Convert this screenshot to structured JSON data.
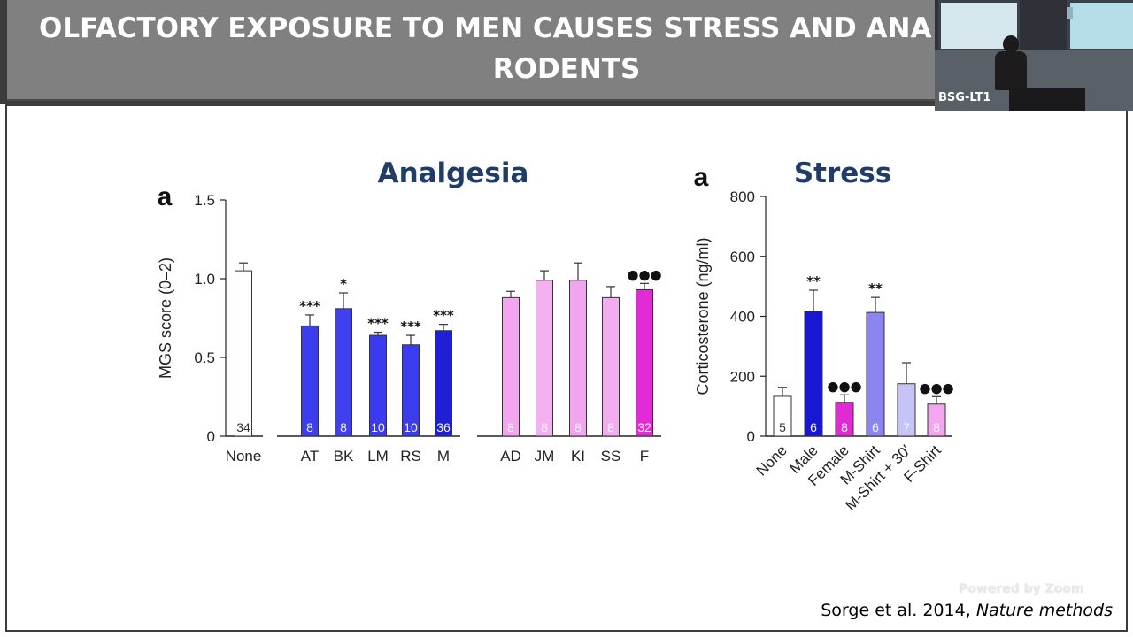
{
  "slide": {
    "title_line1": "OLFACTORY EXPOSURE TO MEN CAUSES STRESS AND ANA",
    "title_line2": "RODENTS",
    "citation_authors": "Sorge et al. 2014, ",
    "citation_journal": "Nature methods",
    "watermark": "Powered by Zoom"
  },
  "video": {
    "label": "BSG-LT1"
  },
  "chart_data": [
    {
      "type": "bar",
      "panel_letter": "a",
      "title": "Analgesia",
      "ylabel": "MGS score (0–2)",
      "ylim": [
        0,
        1.5
      ],
      "yticks": [
        "0",
        "0.5",
        "1.0",
        "1.5"
      ],
      "categories": [
        "None",
        "AT",
        "BK",
        "LM",
        "RS",
        "M",
        "AD",
        "JM",
        "KI",
        "SS",
        "F"
      ],
      "values": [
        1.05,
        0.7,
        0.81,
        0.64,
        0.58,
        0.67,
        0.88,
        0.99,
        0.99,
        0.88,
        0.93
      ],
      "errors": [
        0.05,
        0.07,
        0.1,
        0.02,
        0.06,
        0.04,
        0.04,
        0.06,
        0.11,
        0.07,
        0.04
      ],
      "n": [
        "34",
        "8",
        "8",
        "10",
        "10",
        "36",
        "8",
        "8",
        "8",
        "8",
        "32"
      ],
      "significance": [
        "",
        "***",
        "*",
        "***",
        "***",
        "***",
        "",
        "",
        "",
        "",
        "●●●"
      ],
      "colors": [
        "#ffffff",
        "#3d3df0",
        "#4040ee",
        "#3a3aef",
        "#3b3bf0",
        "#1f1fd6",
        "#f2a6ef",
        "#f5b0f1",
        "#f1a5ee",
        "#f4acf0",
        "#e22ad6"
      ]
    },
    {
      "type": "bar",
      "panel_letter": "a",
      "title": "Stress",
      "ylabel": "Corticosterone (ng/ml)",
      "ylim": [
        0,
        800
      ],
      "yticks": [
        "0",
        "200",
        "400",
        "600",
        "800"
      ],
      "categories": [
        "None",
        "Male",
        "Female",
        "M-Shirt",
        "M-Shirt + 30′",
        "F-Shirt"
      ],
      "values": [
        133,
        417,
        113,
        413,
        175,
        107
      ],
      "errors": [
        30,
        70,
        25,
        50,
        70,
        25
      ],
      "n": [
        "5",
        "6",
        "8",
        "6",
        "7",
        "8"
      ],
      "significance": [
        "",
        "**",
        "●●●",
        "**",
        "",
        "●●●"
      ],
      "colors": [
        "#ffffff",
        "#1818d2",
        "#e02bd4",
        "#8a86ee",
        "#c6c4f7",
        "#f3a7ef"
      ]
    }
  ]
}
